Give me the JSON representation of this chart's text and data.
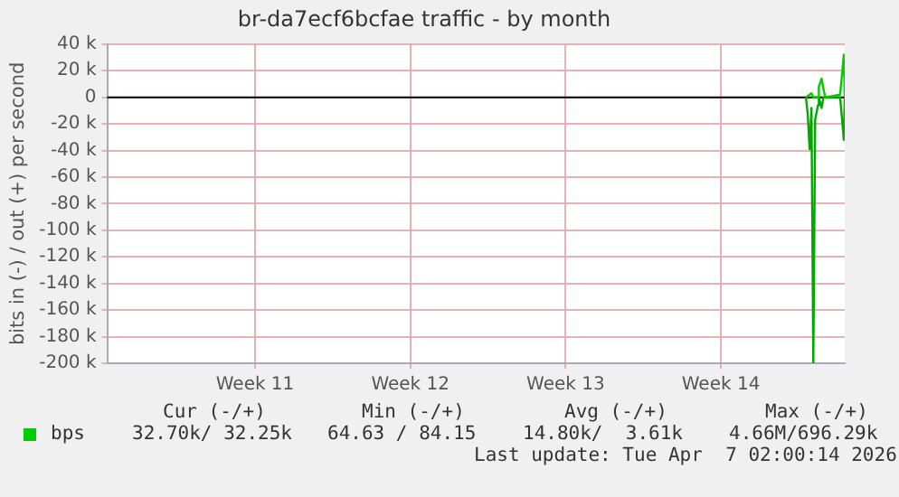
{
  "chart_data": {
    "type": "line",
    "title": "br-da7ecf6bcfae traffic - by month",
    "ylabel": "bits in (-) / out (+) per second",
    "xlim": [
      "2026-03-04T20:00",
      "2026-04-07T02:00"
    ],
    "xticks": [
      {
        "value": "2026-03-11T12:00",
        "label": "Week 11"
      },
      {
        "value": "2026-03-18T12:00",
        "label": "Week 12"
      },
      {
        "value": "2026-03-25T12:00",
        "label": "Week 13"
      },
      {
        "value": "2026-04-01T12:00",
        "label": "Week 14"
      }
    ],
    "ylim": [
      -200,
      40
    ],
    "yticks": [
      {
        "value": 40,
        "label": "40 k"
      },
      {
        "value": 20,
        "label": "20 k"
      },
      {
        "value": 0,
        "label": "0"
      },
      {
        "value": -20,
        "label": "-20 k"
      },
      {
        "value": -40,
        "label": "-40 k"
      },
      {
        "value": -60,
        "label": "-60 k"
      },
      {
        "value": -80,
        "label": "-80 k"
      },
      {
        "value": -100,
        "label": "-100 k"
      },
      {
        "value": -120,
        "label": "-120 k"
      },
      {
        "value": -140,
        "label": "-140 k"
      },
      {
        "value": -160,
        "label": "-160 k"
      },
      {
        "value": -180,
        "label": "-180 k"
      },
      {
        "value": -200,
        "label": "-200 k"
      }
    ],
    "grid": true,
    "legend": "bottom",
    "series": [
      {
        "name": "bps",
        "color": "#00cc00",
        "x": [
          "2026-04-05T08:00",
          "2026-04-05T14:00",
          "2026-04-05T16:00",
          "2026-04-05T21:00",
          "2026-04-05T22:00",
          "2026-04-06T01:00",
          "2026-04-06T03:00",
          "2026-04-06T05:00",
          "2026-04-06T21:00",
          "2026-04-07T01:00",
          "2026-04-07T02:00"
        ],
        "values": [
          0,
          3,
          0,
          0,
          8,
          14,
          6,
          0,
          2,
          32,
          0
        ]
      },
      {
        "color": "#00a800",
        "x": [
          "2026-04-05T08:00",
          "2026-04-05T10:00",
          "2026-04-05T12:00",
          "2026-04-05T14:00",
          "2026-04-05T16:00",
          "2026-04-05T18:00",
          "2026-04-05T21:00",
          "2026-04-05T22:00",
          "2026-04-06T01:00",
          "2026-04-06T03:00",
          "2026-04-06T21:00",
          "2026-04-07T01:00",
          "2026-04-07T02:00"
        ],
        "values": [
          0,
          -13,
          -39,
          -8,
          -200,
          -17,
          -6,
          0,
          -8,
          0,
          0,
          -32,
          0
        ]
      }
    ],
    "ref_lines": [
      {
        "axis": "y",
        "value": 0,
        "color": "#000000"
      }
    ],
    "annotations": [
      "Cur (-/+)",
      "Min (-/+)",
      "Avg (-/+)",
      "Max (-/+)",
      "32.70k/ 32.25k",
      "64.63 / 84.15",
      "14.80k/  3.61k",
      "4.66M/696.29k",
      "Last update: Tue Apr  7 02:00:14 2026"
    ]
  }
}
